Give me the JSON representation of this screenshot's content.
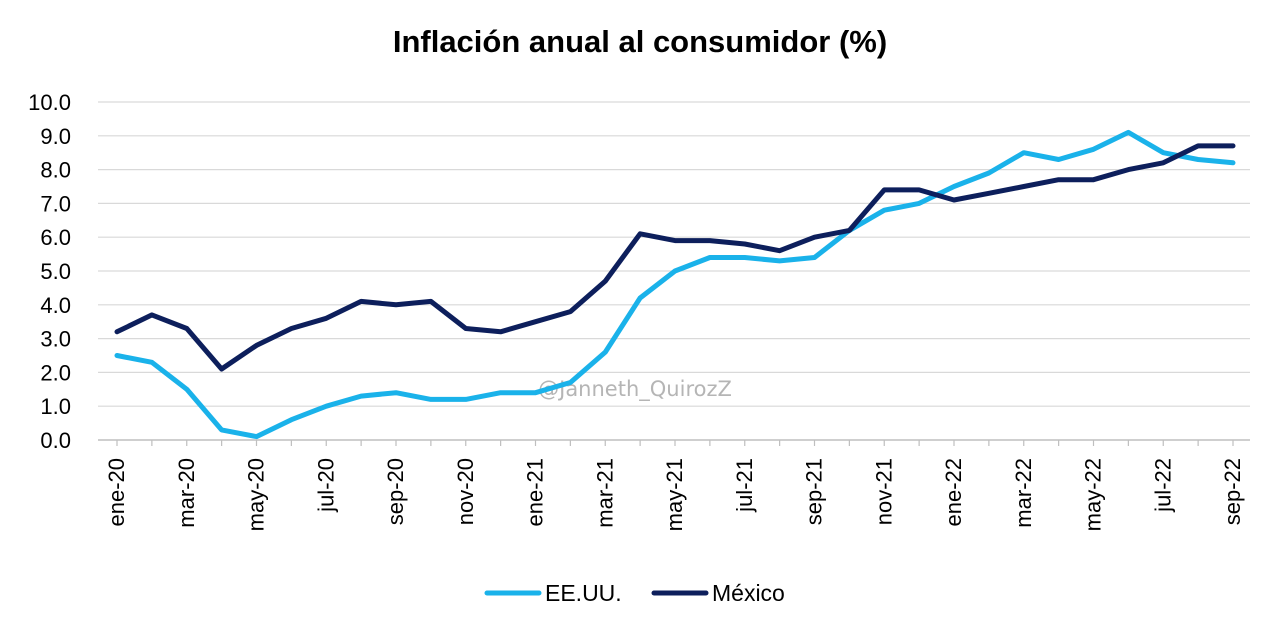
{
  "chart_data": {
    "type": "line",
    "title": "Inflación anual al consumidor (%)",
    "xlabel": "",
    "ylabel": "",
    "ylim": [
      0,
      10
    ],
    "y_ticks": [
      "0.0",
      "1.0",
      "2.0",
      "3.0",
      "4.0",
      "5.0",
      "6.0",
      "7.0",
      "8.0",
      "9.0",
      "10.0"
    ],
    "grid": true,
    "legend_position": "bottom",
    "x_tick_labels": [
      "ene-20",
      "mar-20",
      "may-20",
      "jul-20",
      "sep-20",
      "nov-20",
      "ene-21",
      "mar-21",
      "may-21",
      "jul-21",
      "sep-21",
      "nov-21",
      "ene-22",
      "mar-22",
      "may-22",
      "jul-22",
      "sep-22"
    ],
    "categories": [
      "ene-20",
      "feb-20",
      "mar-20",
      "abr-20",
      "may-20",
      "jun-20",
      "jul-20",
      "ago-20",
      "sep-20",
      "oct-20",
      "nov-20",
      "dic-20",
      "ene-21",
      "feb-21",
      "mar-21",
      "abr-21",
      "may-21",
      "jun-21",
      "jul-21",
      "ago-21",
      "sep-21",
      "oct-21",
      "nov-21",
      "dic-21",
      "ene-22",
      "feb-22",
      "mar-22",
      "abr-22",
      "may-22",
      "jun-22",
      "jul-22",
      "ago-22",
      "sep-22"
    ],
    "series": [
      {
        "name": "EE.UU.",
        "color": "#1ab2ea",
        "values": [
          2.5,
          2.3,
          1.5,
          0.3,
          0.1,
          0.6,
          1.0,
          1.3,
          1.4,
          1.2,
          1.2,
          1.4,
          1.4,
          1.7,
          2.6,
          4.2,
          5.0,
          5.4,
          5.4,
          5.3,
          5.4,
          6.2,
          6.8,
          7.0,
          7.5,
          7.9,
          8.5,
          8.3,
          8.6,
          9.1,
          8.5,
          8.3,
          8.2
        ]
      },
      {
        "name": "México",
        "color": "#0d1f5c",
        "values": [
          3.2,
          3.7,
          3.3,
          2.1,
          2.8,
          3.3,
          3.6,
          4.1,
          4.0,
          4.1,
          3.3,
          3.2,
          3.5,
          3.8,
          4.7,
          6.1,
          5.9,
          5.9,
          5.8,
          5.6,
          6.0,
          6.2,
          7.4,
          7.4,
          7.1,
          7.3,
          7.5,
          7.7,
          7.7,
          8.0,
          8.2,
          8.7,
          8.7
        ]
      }
    ]
  },
  "watermark": "@Janneth_QuirozZ"
}
